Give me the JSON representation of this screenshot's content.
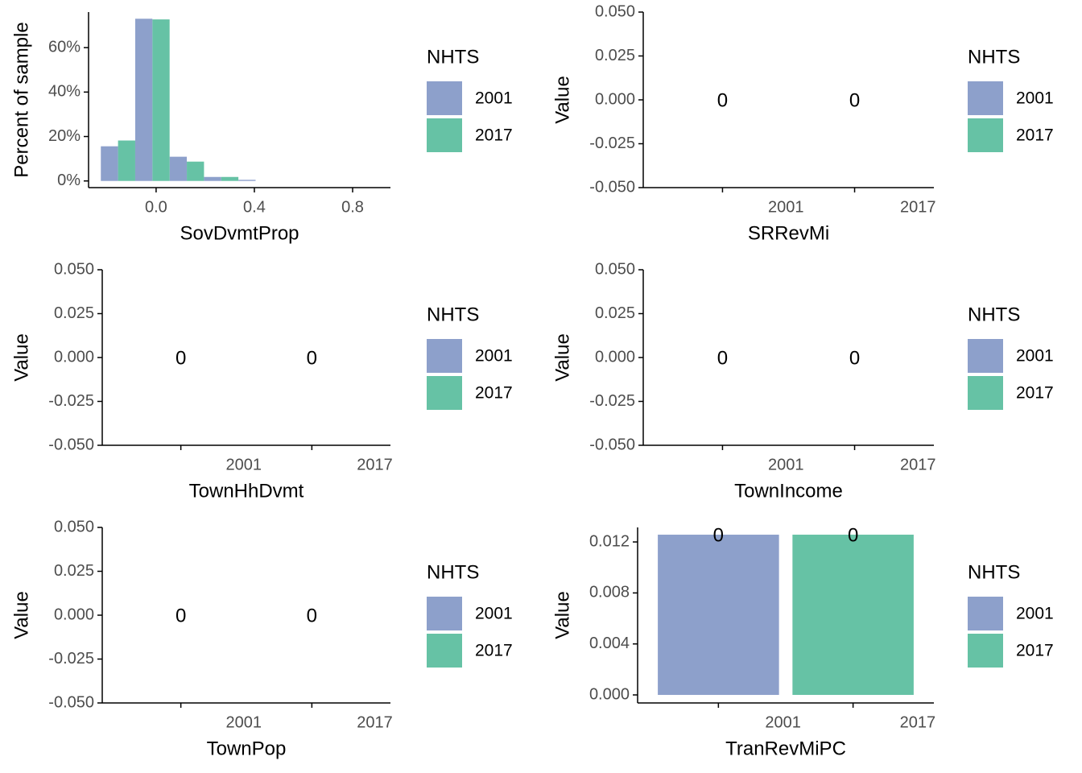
{
  "chart_data": [
    {
      "type": "histogram",
      "x_label": "SovDvmtProp",
      "y_label": "Percent of sample",
      "legend": {
        "title": "NHTS"
      },
      "bins": [
        -0.225,
        -0.085,
        0.055,
        0.195,
        0.335,
        0.475
      ],
      "series": [
        {
          "name": "2001",
          "color": "#8da0cb",
          "values": [
            15.6,
            73,
            10.9,
            1.8,
            0.5
          ]
        },
        {
          "name": "2017",
          "color": "#66c2a5",
          "values": [
            18.2,
            72.7,
            8.7,
            1.8,
            0
          ]
        }
      ],
      "xlim": [
        -0.275,
        0.954
      ],
      "xticks": [
        {
          "value": 0,
          "label": "0.0"
        },
        0.4,
        0.8
      ],
      "ylim": [
        -3,
        76
      ],
      "yticks": [
        {
          "value": 0,
          "label": "0%"
        },
        {
          "value": 20,
          "label": "20%"
        },
        {
          "value": 40,
          "label": "40%"
        },
        {
          "value": 60,
          "label": "60%"
        }
      ]
    },
    {
      "type": "bar",
      "x_label": "SRRevMi",
      "y_label": "Value",
      "legend": {
        "title": "NHTS"
      },
      "categories": [
        "2001",
        "2017"
      ],
      "values": [
        0,
        0
      ],
      "colors": [
        "#8da0cb",
        "#66c2a5"
      ],
      "ylim": [
        -0.05,
        0.05
      ],
      "yticks": [
        {
          "value": -0.05,
          "label": "-0.050"
        },
        {
          "value": -0.025,
          "label": "-0.025"
        },
        {
          "value": 0,
          "label": "0.000"
        },
        {
          "value": 0.025,
          "label": "0.025"
        },
        {
          "value": 0.05,
          "label": "0.050"
        }
      ]
    },
    {
      "type": "bar",
      "x_label": "TownHhDvmt",
      "y_label": "Value",
      "legend": {
        "title": "NHTS"
      },
      "categories": [
        "2001",
        "2017"
      ],
      "values": [
        0,
        0
      ],
      "colors": [
        "#8da0cb",
        "#66c2a5"
      ],
      "ylim": [
        -0.05,
        0.05
      ],
      "yticks": [
        {
          "value": -0.05,
          "label": "-0.050"
        },
        {
          "value": -0.025,
          "label": "-0.025"
        },
        {
          "value": 0,
          "label": "0.000"
        },
        {
          "value": 0.025,
          "label": "0.025"
        },
        {
          "value": 0.05,
          "label": "0.050"
        }
      ]
    },
    {
      "type": "bar",
      "x_label": "TownIncome",
      "y_label": "Value",
      "legend": {
        "title": "NHTS"
      },
      "categories": [
        "2001",
        "2017"
      ],
      "values": [
        0,
        0
      ],
      "colors": [
        "#8da0cb",
        "#66c2a5"
      ],
      "ylim": [
        -0.05,
        0.05
      ],
      "yticks": [
        {
          "value": -0.05,
          "label": "-0.050"
        },
        {
          "value": -0.025,
          "label": "-0.025"
        },
        {
          "value": 0,
          "label": "0.000"
        },
        {
          "value": 0.025,
          "label": "0.025"
        },
        {
          "value": 0.05,
          "label": "0.050"
        }
      ]
    },
    {
      "type": "bar",
      "x_label": "TownPop",
      "y_label": "Value",
      "legend": {
        "title": "NHTS"
      },
      "categories": [
        "2001",
        "2017"
      ],
      "values": [
        0,
        0
      ],
      "colors": [
        "#8da0cb",
        "#66c2a5"
      ],
      "ylim": [
        -0.05,
        0.05
      ],
      "yticks": [
        {
          "value": -0.05,
          "label": "-0.050"
        },
        {
          "value": -0.025,
          "label": "-0.025"
        },
        {
          "value": 0,
          "label": "0.000"
        },
        {
          "value": 0.025,
          "label": "0.025"
        },
        {
          "value": 0.05,
          "label": "0.050"
        }
      ]
    },
    {
      "type": "bar",
      "x_label": "TranRevMiPC",
      "y_label": "Value",
      "legend": {
        "title": "NHTS"
      },
      "categories": [
        "2001",
        "2017"
      ],
      "values": [
        0.01257,
        0.01257
      ],
      "value_labels": [
        "0",
        "0"
      ],
      "colors": [
        "#8da0cb",
        "#66c2a5"
      ],
      "ylim": [
        -0.00063,
        0.01314
      ],
      "yticks": [
        {
          "value": 0,
          "label": "0.000"
        },
        {
          "value": 0.004,
          "label": "0.004"
        },
        {
          "value": 0.008,
          "label": "0.008"
        },
        {
          "value": 0.012,
          "label": "0.012"
        }
      ]
    }
  ]
}
